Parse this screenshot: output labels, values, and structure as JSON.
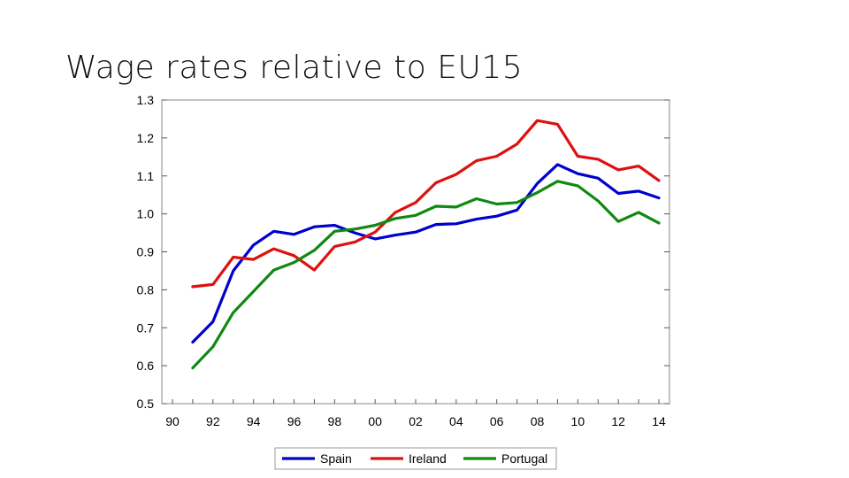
{
  "title": "Wage rates relative to EU15",
  "chart_data": {
    "type": "line",
    "title": "Wage rates relative to EU15",
    "xlabel": "",
    "ylabel": "",
    "x": [
      1991,
      1992,
      1993,
      1994,
      1995,
      1996,
      1997,
      1998,
      1999,
      2000,
      2001,
      2002,
      2003,
      2004,
      2005,
      2006,
      2007,
      2008,
      2009,
      2010,
      2011,
      2012,
      2013,
      2014
    ],
    "xlim": [
      1990,
      2014
    ],
    "x_ticks": [
      1990,
      1992,
      1994,
      1996,
      1998,
      2000,
      2002,
      2004,
      2006,
      2008,
      2010,
      2012,
      2014
    ],
    "x_tick_labels": [
      "90",
      "92",
      "94",
      "96",
      "98",
      "00",
      "02",
      "04",
      "06",
      "08",
      "10",
      "12",
      "14"
    ],
    "ylim": [
      0.5,
      1.3
    ],
    "y_ticks": [
      0.5,
      0.6,
      0.7,
      0.8,
      0.9,
      1.0,
      1.1,
      1.2,
      1.3
    ],
    "y_tick_labels": [
      "0.5",
      "0.6",
      "0.7",
      "0.8",
      "0.9",
      "1.0",
      "1.1",
      "1.2",
      "1.3"
    ],
    "grid": false,
    "legend": "bottom",
    "series": [
      {
        "name": "Spain",
        "color": "#0000cc",
        "values": [
          0.662,
          0.716,
          0.85,
          0.918,
          0.954,
          0.946,
          0.966,
          0.97,
          0.95,
          0.934,
          0.944,
          0.952,
          0.972,
          0.974,
          0.986,
          0.994,
          1.01,
          1.08,
          1.13,
          1.106,
          1.094,
          1.054,
          1.06,
          1.042
        ]
      },
      {
        "name": "Ireland",
        "color": "#dd1111",
        "values": [
          0.808,
          0.814,
          0.886,
          0.88,
          0.908,
          0.89,
          0.852,
          0.914,
          0.926,
          0.952,
          1.004,
          1.03,
          1.082,
          1.104,
          1.14,
          1.152,
          1.184,
          1.246,
          1.236,
          1.152,
          1.144,
          1.116,
          1.126,
          1.088
        ]
      },
      {
        "name": "Portugal",
        "color": "#118811",
        "values": [
          0.594,
          0.65,
          0.74,
          0.796,
          0.852,
          0.872,
          0.904,
          0.954,
          0.96,
          0.97,
          0.988,
          0.996,
          1.02,
          1.018,
          1.04,
          1.026,
          1.03,
          1.056,
          1.086,
          1.074,
          1.034,
          0.98,
          1.004,
          0.976
        ]
      }
    ]
  }
}
